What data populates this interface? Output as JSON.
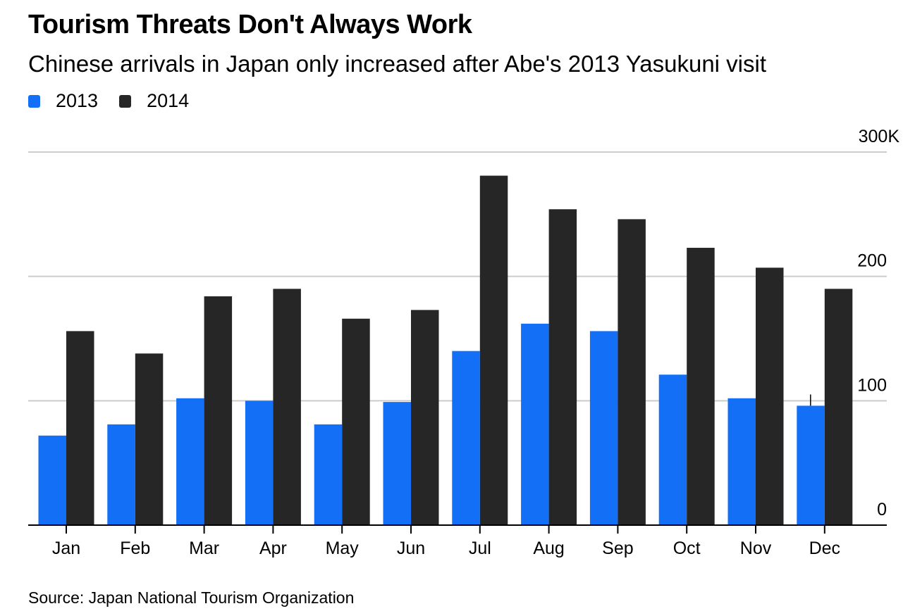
{
  "header": {
    "title": "Tourism Threats Don't Always Work",
    "subtitle": "Chinese arrivals in Japan only increased after Abe's 2013 Yasukuni visit"
  },
  "legend": [
    {
      "label": "2013",
      "color": "#136ff6"
    },
    {
      "label": "2014",
      "color": "#262626"
    }
  ],
  "footer": {
    "source": "Source: Japan National Tourism Organization"
  },
  "chart_data": {
    "type": "bar",
    "title": "Tourism Threats Don't Always Work",
    "subtitle": "Chinese arrivals in Japan only increased after Abe's 2013 Yasukuni visit",
    "xlabel": "",
    "ylabel": "",
    "categories": [
      "Jan",
      "Feb",
      "Mar",
      "Apr",
      "May",
      "Jun",
      "Jul",
      "Aug",
      "Sep",
      "Oct",
      "Nov",
      "Dec"
    ],
    "series": [
      {
        "name": "2013",
        "color": "#136ff6",
        "values": [
          72,
          81,
          102,
          100,
          81,
          99,
          140,
          162,
          156,
          121,
          102,
          96
        ]
      },
      {
        "name": "2014",
        "color": "#262626",
        "values": [
          156,
          138,
          184,
          190,
          166,
          173,
          281,
          254,
          246,
          223,
          207,
          190
        ]
      }
    ],
    "units": "thousands",
    "ylim": [
      0,
      300
    ],
    "yticks": [
      0,
      100,
      200,
      300
    ],
    "ytick_labels": [
      "0",
      "100",
      "200",
      "300K"
    ],
    "y_axis_side": "right",
    "grid": true,
    "legend_position": "top-left"
  }
}
